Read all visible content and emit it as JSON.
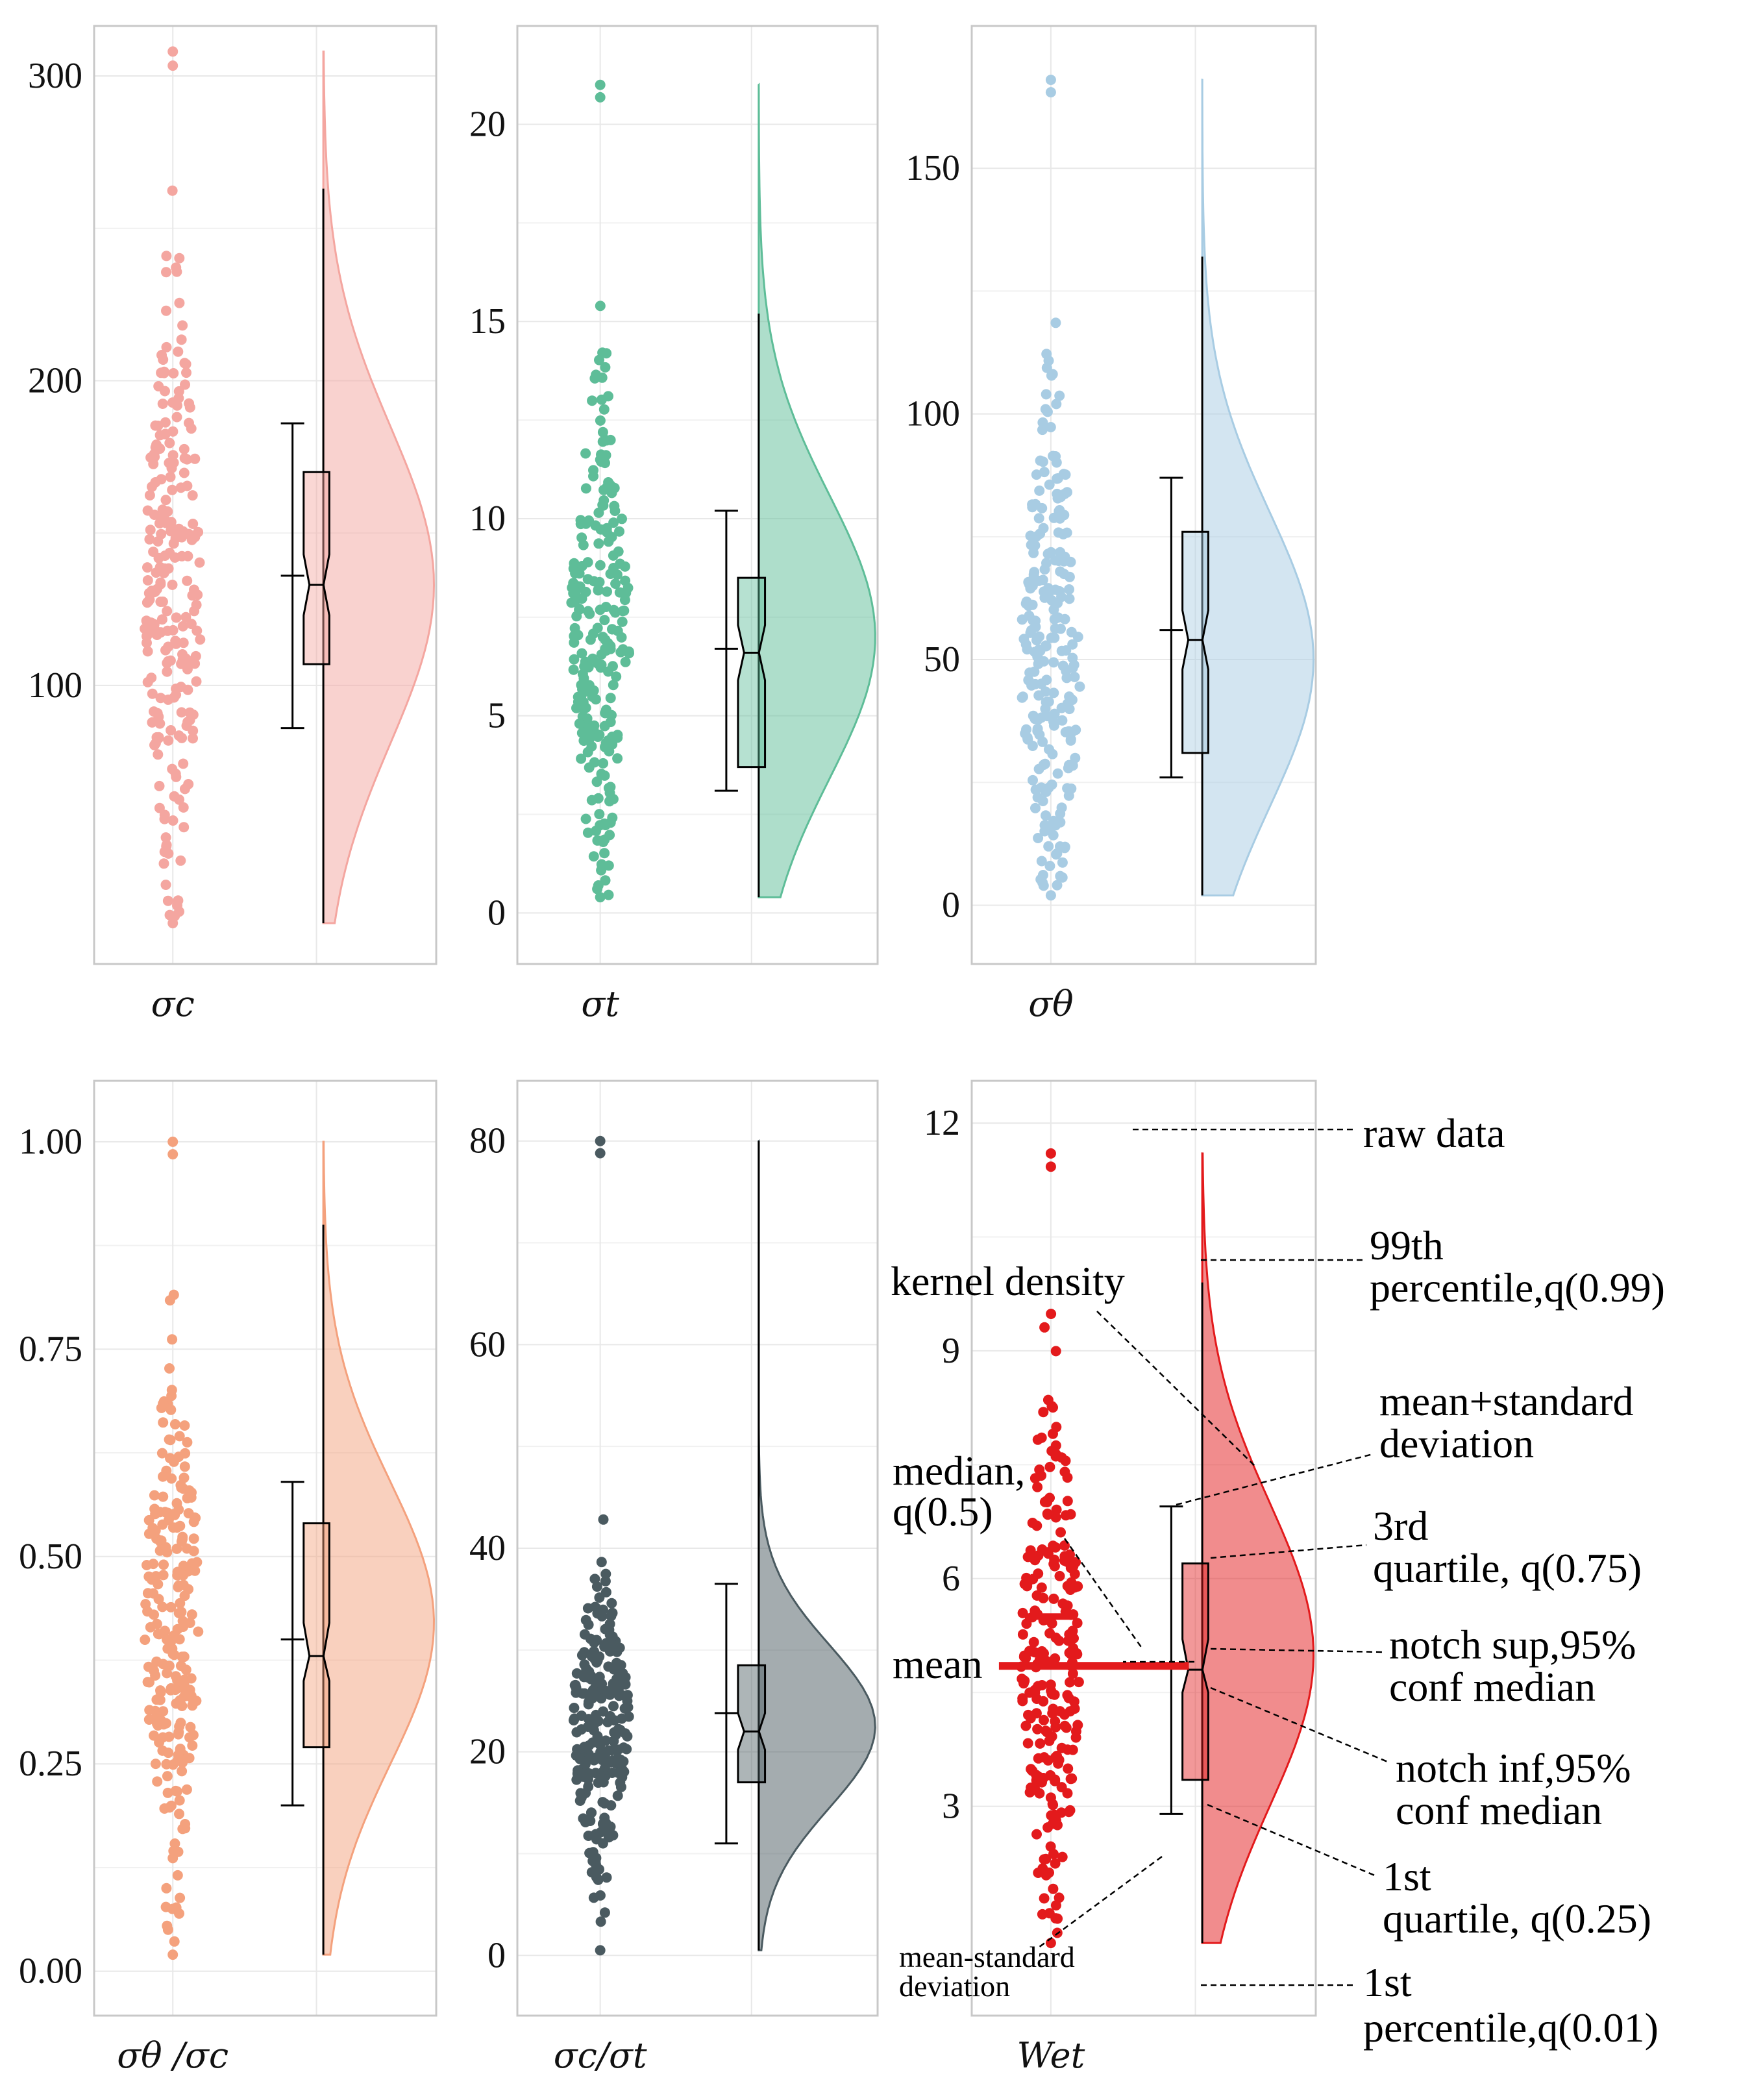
{
  "chart_data": [
    {
      "type": "raincloud",
      "xlabel": "σc",
      "color": "#F4A6A0",
      "ylim": [
        15,
        310
      ],
      "yticks": [
        100,
        200,
        300
      ],
      "tick_labels": [
        "100",
        "200",
        "300"
      ],
      "min": 22,
      "q01": 22,
      "q25": 107,
      "median": 133,
      "q75": 170,
      "q99": 263,
      "max": 308,
      "mean": 136,
      "sd_low": 86,
      "sd_high": 186,
      "notch": [
        123,
        143
      ],
      "density_peak": 133,
      "density_sd": 52
    },
    {
      "type": "raincloud",
      "xlabel": "σt",
      "color": "#5EBD98",
      "ylim": [
        -0.8,
        22
      ],
      "yticks": [
        0,
        5,
        10,
        15,
        20
      ],
      "tick_labels": [
        "0",
        "5",
        "10",
        "15",
        "20"
      ],
      "min": 0.4,
      "q01": 0.4,
      "q25": 3.7,
      "median": 6.6,
      "q75": 8.5,
      "q99": 15.2,
      "max": 21,
      "mean": 6.7,
      "sd_low": 3.1,
      "sd_high": 10.2,
      "notch": [
        5.9,
        7.3
      ],
      "density_peak": 7.0,
      "density_sd": 3.6
    },
    {
      "type": "raincloud",
      "xlabel": "σθ",
      "color": "#A8CCE3",
      "ylim": [
        -8,
        175
      ],
      "yticks": [
        0,
        50,
        100,
        150
      ],
      "tick_labels": [
        "0",
        "50",
        "100",
        "150"
      ],
      "min": 2,
      "q01": 2,
      "q25": 31,
      "median": 54,
      "q75": 76,
      "q99": 132,
      "max": 168,
      "mean": 56,
      "sd_low": 26,
      "sd_high": 87,
      "notch": [
        48,
        60
      ],
      "density_peak": 50,
      "density_sd": 30
    },
    {
      "type": "raincloud",
      "xlabel": "σθ /σc",
      "color": "#F4A17D",
      "ylim": [
        -0.03,
        1.05
      ],
      "yticks": [
        0.0,
        0.25,
        0.5,
        0.75,
        1.0
      ],
      "tick_labels": [
        "0.00",
        "0.25",
        "0.50",
        "0.75",
        "1.00"
      ],
      "min": 0.02,
      "q01": 0.02,
      "q25": 0.27,
      "median": 0.38,
      "q75": 0.54,
      "q99": 0.9,
      "max": 1.0,
      "mean": 0.4,
      "sd_low": 0.2,
      "sd_high": 0.59,
      "notch": [
        0.35,
        0.42
      ],
      "density_peak": 0.42,
      "density_sd": 0.17
    },
    {
      "type": "raincloud",
      "xlabel": "σc/σt",
      "color": "#4A5A60",
      "ylim": [
        -4,
        84
      ],
      "yticks": [
        0,
        20,
        40,
        60,
        80
      ],
      "tick_labels": [
        "0",
        "20",
        "40",
        "60",
        "80"
      ],
      "min": 0.5,
      "q01": 0.5,
      "q25": 17,
      "median": 22,
      "q75": 28.5,
      "q99": 80,
      "max": 80,
      "mean": 23.8,
      "sd_low": 11,
      "sd_high": 36.5,
      "notch": [
        20.2,
        23.8
      ],
      "density_peak": 22.5,
      "density_sd": 8
    },
    {
      "type": "raincloud",
      "xlabel": "Wet",
      "color": "#E31A1C",
      "ylim": [
        0.5,
        12.3
      ],
      "yticks": [
        3,
        6,
        9,
        12
      ],
      "tick_labels": [
        "3",
        "6",
        "9",
        "12"
      ],
      "min": 1.2,
      "q01": 1.2,
      "q25": 3.35,
      "median": 4.8,
      "q75": 6.2,
      "q99": 9.9,
      "max": 11.6,
      "mean": 4.85,
      "sd_low": 2.9,
      "sd_high": 6.95,
      "notch": [
        4.5,
        5.2
      ],
      "density_peak": 5.0,
      "density_sd": 2.0
    }
  ],
  "annotations": {
    "raw_data": "raw data",
    "p99_line1": "99th",
    "p99_line2": "percentile,q(0.99)",
    "kernel_density": "kernel density",
    "mean_sd_high_line1": "mean+standard",
    "mean_sd_high_line2": "deviation",
    "median_line1": "median,",
    "median_line2": "q(0.5)",
    "q75_line1": "3rd",
    "q75_line2": "quartile, q(0.75)",
    "mean": "mean",
    "notch_sup_line1": "notch sup,95%",
    "notch_sup_line2": "conf median",
    "notch_inf_line1": "notch inf,95%",
    "notch_inf_line2": "conf median",
    "q25_line1": "1st",
    "q25_line2": "quartile, q(0.25)",
    "mean_sd_low_line1": "mean-standard",
    "mean_sd_low_line2": "deviation",
    "p01_line1": "1st",
    "p01_line2": "percentile,q(0.01)"
  }
}
